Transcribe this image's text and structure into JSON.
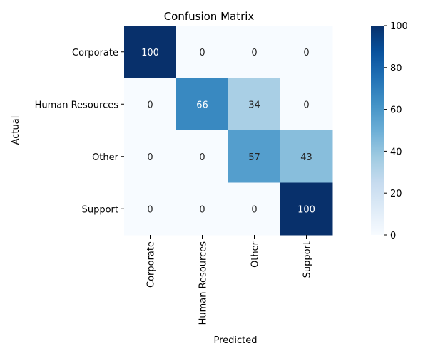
{
  "chart_data": {
    "type": "heatmap",
    "title": "Confusion Matrix",
    "xlabel": "Predicted",
    "ylabel": "Actual",
    "x_categories": [
      "Corporate",
      "Human Resources",
      "Other",
      "Support"
    ],
    "y_categories": [
      "Corporate",
      "Human Resources",
      "Other",
      "Support"
    ],
    "values": [
      [
        100,
        0,
        0,
        0
      ],
      [
        0,
        66,
        34,
        0
      ],
      [
        0,
        0,
        57,
        43
      ],
      [
        0,
        0,
        0,
        100
      ]
    ],
    "colormap": "Blues",
    "colorbar": {
      "range": [
        0,
        100
      ],
      "ticks": [
        0,
        20,
        40,
        60,
        80,
        100
      ]
    }
  }
}
